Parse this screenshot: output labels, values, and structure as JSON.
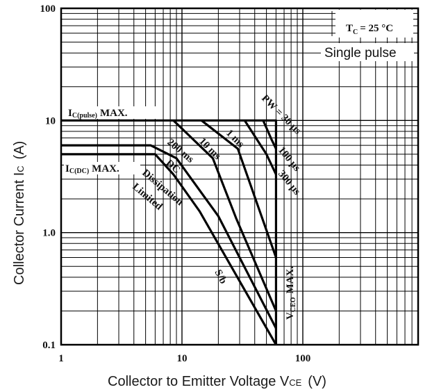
{
  "chart_data": {
    "type": "line",
    "xscale": "log",
    "yscale": "log",
    "xlim": [
      1,
      900
    ],
    "ylim": [
      0.1,
      100
    ],
    "xlabel": "Collector to Emitter Voltage  V",
    "xlabel_sub": "CE",
    "xlabel_unit": "(V)",
    "ylabel": "Collector Current  I",
    "ylabel_sub": "C",
    "ylabel_unit": "(A)",
    "x_ticks": [
      "1",
      "10",
      "100"
    ],
    "y_ticks": [
      "0.1",
      "1.0",
      "10",
      "100"
    ],
    "grid": true,
    "legend": {
      "tc": "T",
      "tc_sub": "C",
      "tc_value": "= 25 °C",
      "mode": "Single pulse"
    },
    "series": [
      {
        "name": "DC",
        "points": [
          [
            1,
            5
          ],
          [
            6,
            5
          ],
          [
            8.5,
            3.3
          ],
          [
            14,
            1.55
          ],
          [
            60,
            0.1
          ]
        ]
      },
      {
        "name": "200 ms",
        "points": [
          [
            1,
            6
          ],
          [
            5.5,
            6
          ],
          [
            9,
            4.6
          ],
          [
            20,
            1.4
          ],
          [
            60,
            0.14
          ]
        ]
      },
      {
        "name": "10 ms",
        "points": [
          [
            8.5,
            10
          ],
          [
            18,
            4.6
          ],
          [
            28,
            1.35
          ],
          [
            60,
            0.2
          ]
        ]
      },
      {
        "name": "1 ms",
        "points": [
          [
            14.5,
            10
          ],
          [
            29,
            5.6
          ],
          [
            60,
            0.6
          ]
        ]
      },
      {
        "name": "300 µs",
        "points": [
          [
            33,
            10
          ],
          [
            50,
            5
          ],
          [
            60,
            3.3
          ]
        ]
      },
      {
        "name": "100 µs",
        "points": [
          [
            47,
            10
          ],
          [
            55,
            6.8
          ],
          [
            60,
            5.6
          ]
        ]
      },
      {
        "name": "PW = 30 µs",
        "points": [
          [
            1,
            10
          ],
          [
            60,
            10
          ],
          [
            60,
            0.1
          ]
        ]
      }
    ],
    "annotations": {
      "ic_pulse": "MAX.",
      "ic_pulse_prefix": "I",
      "ic_pulse_sub": "C(pulse)",
      "ic_dc": "MAX.",
      "ic_dc_prefix": "I",
      "ic_dc_sub": "C(DC)",
      "dissipation": "Dissipation",
      "limited": "Limited",
      "dc": "DC",
      "ms200": "200 ms",
      "ms10": "10 ms",
      "ms1": "1 ms",
      "pw": "PW = 30 µs",
      "us100": "100 µs",
      "us300": "300 µs",
      "sb": "S/b",
      "vceo": "MAX.",
      "vceo_prefix": "V",
      "vceo_sub": "CEO"
    }
  }
}
